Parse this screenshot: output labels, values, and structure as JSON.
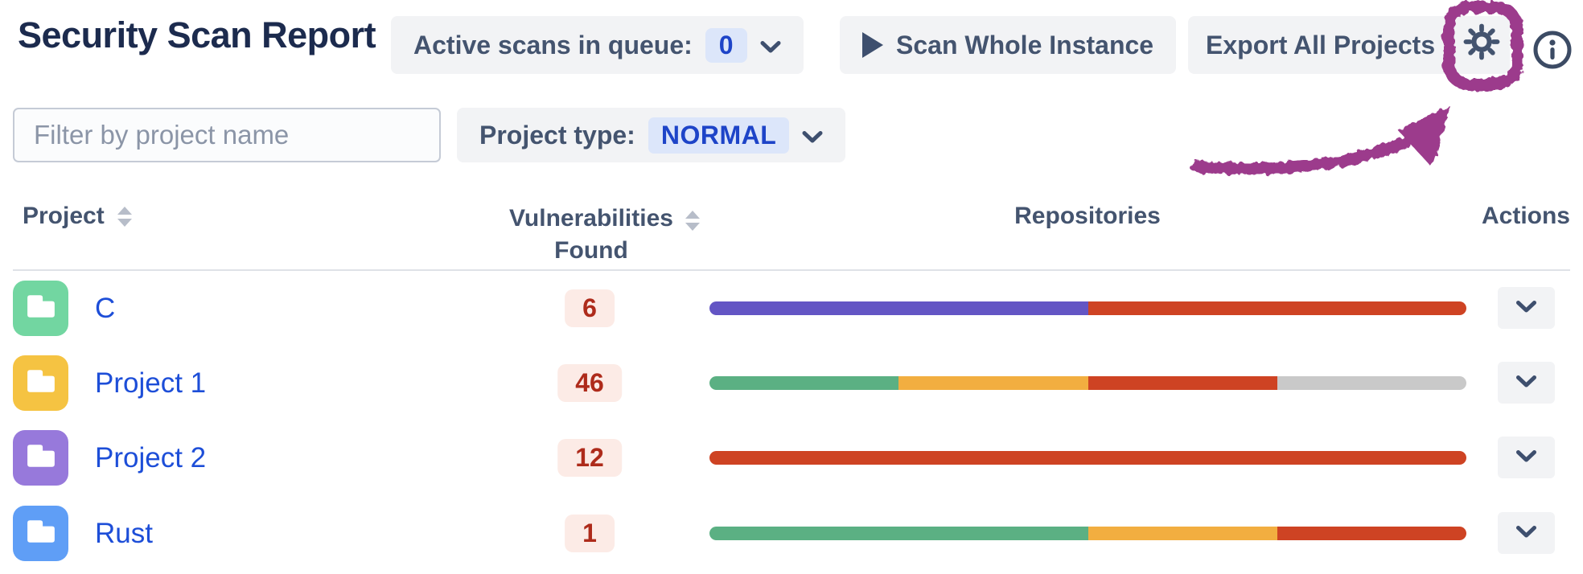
{
  "header": {
    "title": "Security Scan Report",
    "active_scans_label": "Active scans in queue:",
    "active_scans_count": "0",
    "scan_whole_instance_label": "Scan Whole Instance",
    "export_all_label": "Export All Projects",
    "icons": {
      "play": "play-triangle",
      "chevron_down": "chevron-down",
      "gear": "settings-gear",
      "info": "info-circle"
    }
  },
  "filters": {
    "project_filter_placeholder": "Filter by project name",
    "project_filter_value": "",
    "project_type_label": "Project type:",
    "project_type_value": "NORMAL"
  },
  "table": {
    "columns": [
      {
        "label": "Project",
        "sortable": true
      },
      {
        "label": "Vulnerabilities Found",
        "sortable": true
      },
      {
        "label": "Repositories",
        "sortable": false
      },
      {
        "label": "Actions",
        "sortable": false
      }
    ],
    "rows": [
      {
        "name": "C",
        "vulnerabilities": "6",
        "avatar_color": "#72d6a1",
        "repo_segments": [
          {
            "color": "#6355c4",
            "pct": 50
          },
          {
            "color": "#ce4323",
            "pct": 50
          }
        ]
      },
      {
        "name": "Project 1",
        "vulnerabilities": "46",
        "avatar_color": "#f5c342",
        "repo_segments": [
          {
            "color": "#5bb083",
            "pct": 25
          },
          {
            "color": "#f2ae40",
            "pct": 25
          },
          {
            "color": "#ce4323",
            "pct": 25
          },
          {
            "color": "#c9c9c9",
            "pct": 25
          }
        ]
      },
      {
        "name": "Project 2",
        "vulnerabilities": "12",
        "avatar_color": "#9779db",
        "repo_segments": [
          {
            "color": "#ce4323",
            "pct": 100
          }
        ]
      },
      {
        "name": "Rust",
        "vulnerabilities": "1",
        "avatar_color": "#5f9ef6",
        "repo_segments": [
          {
            "color": "#5bb083",
            "pct": 50
          },
          {
            "color": "#f2ae40",
            "pct": 25
          },
          {
            "color": "#ce4323",
            "pct": 25
          }
        ]
      }
    ]
  },
  "colors": {
    "title_text": "#1c2b4e",
    "button_bg": "#f2f3f5",
    "button_text": "#44546f",
    "link_blue": "#1d4ed8",
    "pill_blue_bg": "#dce6fa",
    "pill_blue_text": "#1d44c8",
    "vuln_badge_bg": "#fcebe6",
    "vuln_badge_text": "#ae2b1b",
    "annotation_purple": "#9c3a8c"
  }
}
